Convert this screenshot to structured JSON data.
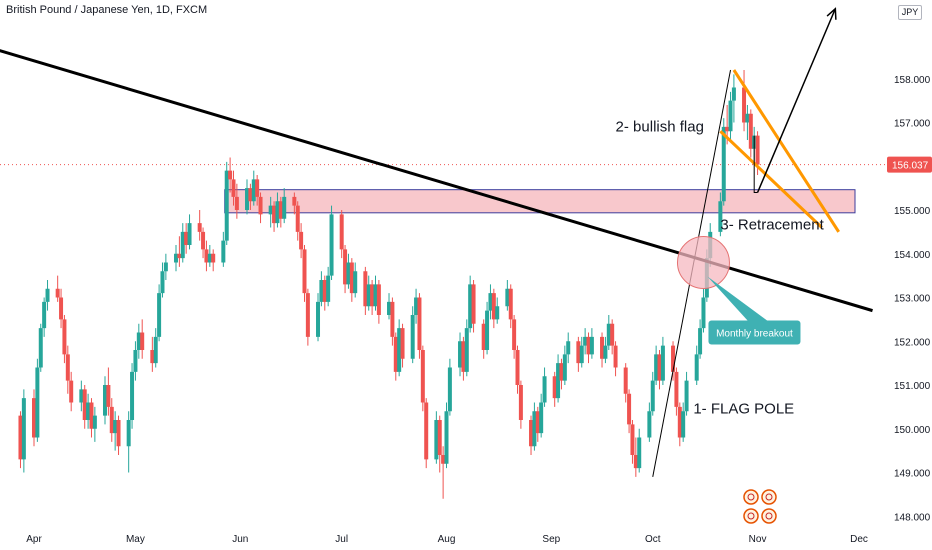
{
  "header": {
    "title": "British Pound / Japanese Yen, 1D, FXCM",
    "currency_button": "JPY"
  },
  "colors": {
    "up": "#26a69a",
    "down": "#ef5350",
    "trendline": "#000000",
    "flag_channel": "#ff9800",
    "zone_fill": "#f8c8cc",
    "zone_border": "#3c3c9c",
    "breakout_circle": "#f6b8c0",
    "callout": "#3fb1b3",
    "last_price_line": "#ef5350"
  },
  "annotations": {
    "flag_pole": "1- FLAG POLE",
    "bullish_flag": "2- bullish flag",
    "retracement": "3- Retracement",
    "monthly_breakout": "Monthly breakout"
  },
  "last_price": "156.037",
  "chart_data": {
    "type": "candlestick",
    "title": "British Pound / Japanese Yen, 1D, FXCM",
    "ylim": [
      147.8,
      159.8
    ],
    "y_ticks": [
      "148.000",
      "149.000",
      "150.000",
      "151.000",
      "152.000",
      "153.000",
      "154.000",
      "155.000",
      "156.000",
      "157.000",
      "158.000"
    ],
    "x_ticks": [
      "Apr",
      "May",
      "Jun",
      "Jul",
      "Aug",
      "Sep",
      "Oct",
      "Nov",
      "Dec"
    ],
    "grid": false,
    "candles": [
      [
        "2024-03-28",
        150.3,
        150.4,
        149.1,
        149.3
      ],
      [
        "2024-03-29",
        149.3,
        150.9,
        149.0,
        150.7
      ],
      [
        "2024-04-01",
        150.7,
        150.9,
        149.6,
        149.8
      ],
      [
        "2024-04-02",
        149.8,
        151.6,
        149.7,
        151.4
      ],
      [
        "2024-04-03",
        151.4,
        152.4,
        151.3,
        152.3
      ],
      [
        "2024-04-04",
        152.3,
        153.0,
        152.1,
        152.9
      ],
      [
        "2024-04-05",
        152.9,
        153.4,
        152.7,
        153.2
      ],
      [
        "2024-04-08",
        153.2,
        153.5,
        152.9,
        153.0
      ],
      [
        "2024-04-09",
        153.0,
        153.2,
        152.3,
        152.5
      ],
      [
        "2024-04-10",
        152.5,
        152.6,
        151.5,
        151.7
      ],
      [
        "2024-04-11",
        151.7,
        151.9,
        150.8,
        151.1
      ],
      [
        "2024-04-12",
        151.1,
        151.3,
        150.4,
        150.6
      ],
      [
        "2024-04-15",
        150.6,
        151.1,
        150.4,
        150.9
      ],
      [
        "2024-04-16",
        150.9,
        151.0,
        150.0,
        150.2
      ],
      [
        "2024-04-17",
        150.2,
        150.8,
        150.0,
        150.6
      ],
      [
        "2024-04-18",
        150.6,
        150.7,
        149.8,
        150.0
      ],
      [
        "2024-04-19",
        150.0,
        150.5,
        149.7,
        150.3
      ],
      [
        "2024-04-22",
        150.3,
        151.2,
        150.1,
        151.0
      ],
      [
        "2024-04-23",
        151.0,
        151.4,
        150.3,
        150.5
      ],
      [
        "2024-04-24",
        150.5,
        150.7,
        149.7,
        149.9
      ],
      [
        "2024-04-25",
        149.9,
        150.4,
        149.5,
        150.2
      ],
      [
        "2024-04-26",
        150.2,
        150.3,
        149.4,
        149.6
      ],
      [
        "2024-04-29",
        149.6,
        150.4,
        149.0,
        150.2
      ],
      [
        "2024-04-30",
        150.2,
        151.5,
        150.0,
        151.3
      ],
      [
        "2024-05-01",
        151.3,
        152.0,
        151.1,
        151.8
      ],
      [
        "2024-05-02",
        151.8,
        152.4,
        151.6,
        152.2
      ],
      [
        "2024-05-03",
        152.2,
        152.5,
        151.6,
        151.8
      ],
      [
        "2024-05-06",
        151.8,
        152.1,
        151.3,
        151.5
      ],
      [
        "2024-05-07",
        151.5,
        152.3,
        151.4,
        152.1
      ],
      [
        "2024-05-08",
        152.1,
        153.3,
        152.0,
        153.1
      ],
      [
        "2024-05-09",
        153.1,
        153.8,
        153.0,
        153.6
      ],
      [
        "2024-05-10",
        153.6,
        154.0,
        153.4,
        153.8
      ],
      [
        "2024-05-13",
        153.8,
        154.2,
        153.6,
        154.0
      ],
      [
        "2024-05-14",
        154.0,
        154.4,
        153.7,
        153.9
      ],
      [
        "2024-05-15",
        153.9,
        154.7,
        153.8,
        154.5
      ],
      [
        "2024-05-16",
        154.5,
        154.7,
        154.0,
        154.2
      ],
      [
        "2024-05-17",
        154.2,
        154.9,
        154.1,
        154.7
      ],
      [
        "2024-05-20",
        154.7,
        155.0,
        154.3,
        154.5
      ],
      [
        "2024-05-21",
        154.5,
        154.6,
        153.9,
        154.1
      ],
      [
        "2024-05-22",
        154.1,
        154.3,
        153.6,
        153.8
      ],
      [
        "2024-05-23",
        153.8,
        154.2,
        153.7,
        154.0
      ],
      [
        "2024-05-24",
        154.0,
        154.1,
        153.6,
        153.8
      ],
      [
        "2024-05-27",
        153.8,
        154.5,
        153.7,
        154.3
      ],
      [
        "2024-05-28",
        154.3,
        156.1,
        154.2,
        155.9
      ],
      [
        "2024-05-29",
        155.9,
        156.2,
        155.4,
        155.7
      ],
      [
        "2024-05-30",
        155.7,
        155.9,
        155.1,
        155.3
      ],
      [
        "2024-05-31",
        155.3,
        155.6,
        154.8,
        155.0
      ],
      [
        "2024-06-03",
        155.0,
        155.7,
        154.9,
        155.5
      ],
      [
        "2024-06-04",
        155.5,
        155.6,
        155.0,
        155.2
      ],
      [
        "2024-06-05",
        155.2,
        155.9,
        155.1,
        155.7
      ],
      [
        "2024-06-06",
        155.7,
        155.8,
        155.1,
        155.3
      ],
      [
        "2024-06-07",
        155.3,
        155.4,
        154.7,
        154.9
      ],
      [
        "2024-06-10",
        154.9,
        155.3,
        154.6,
        155.1
      ],
      [
        "2024-06-11",
        155.1,
        155.2,
        154.5,
        154.7
      ],
      [
        "2024-06-12",
        154.7,
        155.4,
        154.6,
        155.2
      ],
      [
        "2024-06-13",
        155.2,
        155.3,
        154.6,
        154.8
      ],
      [
        "2024-06-14",
        154.8,
        155.5,
        154.7,
        155.3
      ],
      [
        "2024-06-17",
        155.3,
        155.4,
        154.9,
        155.1
      ],
      [
        "2024-06-18",
        155.1,
        155.2,
        154.3,
        154.5
      ],
      [
        "2024-06-19",
        154.5,
        154.7,
        153.9,
        154.1
      ],
      [
        "2024-06-20",
        154.1,
        154.2,
        152.9,
        153.1
      ],
      [
        "2024-06-21",
        153.1,
        153.2,
        151.9,
        152.1
      ],
      [
        "2024-06-24",
        152.1,
        153.1,
        152.0,
        152.9
      ],
      [
        "2024-06-25",
        152.9,
        153.6,
        152.8,
        153.4
      ],
      [
        "2024-06-26",
        153.4,
        153.5,
        152.7,
        152.9
      ],
      [
        "2024-06-27",
        152.9,
        153.7,
        152.8,
        153.5
      ],
      [
        "2024-06-28",
        153.5,
        155.1,
        153.4,
        154.9
      ],
      [
        "2024-07-01",
        154.9,
        155.0,
        153.9,
        154.1
      ],
      [
        "2024-07-02",
        154.1,
        154.2,
        153.1,
        153.3
      ],
      [
        "2024-07-03",
        153.3,
        154.0,
        153.2,
        153.8
      ],
      [
        "2024-07-04",
        153.8,
        153.9,
        152.9,
        153.1
      ],
      [
        "2024-07-05",
        153.1,
        153.8,
        153.0,
        153.6
      ],
      [
        "2024-07-08",
        153.6,
        153.7,
        152.6,
        152.8
      ],
      [
        "2024-07-09",
        152.8,
        153.5,
        152.7,
        153.3
      ],
      [
        "2024-07-10",
        153.3,
        153.4,
        152.6,
        152.8
      ],
      [
        "2024-07-11",
        152.8,
        153.5,
        152.7,
        153.3
      ],
      [
        "2024-07-12",
        153.3,
        153.4,
        152.4,
        152.6
      ],
      [
        "2024-07-15",
        152.6,
        153.1,
        152.5,
        152.9
      ],
      [
        "2024-07-16",
        152.9,
        153.0,
        151.9,
        152.1
      ],
      [
        "2024-07-17",
        152.1,
        152.2,
        151.1,
        151.3
      ],
      [
        "2024-07-18",
        151.3,
        152.5,
        151.2,
        152.3
      ],
      [
        "2024-07-19",
        152.3,
        152.4,
        151.4,
        151.6
      ],
      [
        "2024-07-22",
        151.6,
        152.8,
        151.5,
        152.6
      ],
      [
        "2024-07-23",
        152.6,
        153.2,
        152.4,
        153.0
      ],
      [
        "2024-07-24",
        153.0,
        153.1,
        151.6,
        151.8
      ],
      [
        "2024-07-25",
        151.8,
        151.9,
        150.4,
        150.6
      ],
      [
        "2024-07-26",
        150.6,
        150.7,
        149.1,
        149.3
      ],
      [
        "2024-07-29",
        149.3,
        150.4,
        149.2,
        150.2
      ],
      [
        "2024-07-30",
        150.2,
        150.3,
        149.0,
        149.4
      ],
      [
        "2024-07-31",
        149.4,
        149.6,
        148.4,
        149.2
      ],
      [
        "2024-08-01",
        149.2,
        150.6,
        149.1,
        150.4
      ],
      [
        "2024-08-02",
        150.4,
        151.6,
        150.3,
        151.4
      ],
      [
        "2024-08-05",
        151.4,
        152.2,
        151.2,
        152.0
      ],
      [
        "2024-08-06",
        152.0,
        152.1,
        151.1,
        151.3
      ],
      [
        "2024-08-07",
        151.3,
        152.5,
        151.2,
        152.3
      ],
      [
        "2024-08-08",
        152.3,
        153.5,
        152.2,
        153.3
      ],
      [
        "2024-08-09",
        153.3,
        153.4,
        152.2,
        152.4
      ],
      [
        "2024-08-12",
        152.4,
        152.5,
        151.6,
        151.8
      ],
      [
        "2024-08-13",
        151.8,
        152.9,
        151.7,
        152.7
      ],
      [
        "2024-08-14",
        152.7,
        153.3,
        152.5,
        153.1
      ],
      [
        "2024-08-15",
        153.1,
        153.2,
        152.3,
        152.5
      ],
      [
        "2024-08-16",
        152.5,
        153.0,
        152.4,
        152.8
      ],
      [
        "2024-08-19",
        152.8,
        153.4,
        152.7,
        153.2
      ],
      [
        "2024-08-20",
        153.2,
        153.3,
        152.3,
        152.5
      ],
      [
        "2024-08-21",
        152.5,
        152.6,
        151.6,
        151.8
      ],
      [
        "2024-08-22",
        151.8,
        151.9,
        150.8,
        151.0
      ],
      [
        "2024-08-23",
        151.0,
        151.1,
        150.0,
        150.2
      ],
      [
        "2024-08-26",
        150.2,
        150.3,
        149.4,
        149.6
      ],
      [
        "2024-08-27",
        149.6,
        150.6,
        149.5,
        150.4
      ],
      [
        "2024-08-28",
        150.4,
        150.5,
        149.7,
        149.9
      ],
      [
        "2024-08-29",
        149.9,
        150.8,
        149.8,
        150.6
      ],
      [
        "2024-08-30",
        150.6,
        151.4,
        150.5,
        151.2
      ],
      [
        "2024-09-02",
        151.2,
        151.3,
        150.5,
        150.7
      ],
      [
        "2024-09-03",
        150.7,
        151.7,
        150.6,
        151.5
      ],
      [
        "2024-09-04",
        151.5,
        151.6,
        150.9,
        151.1
      ],
      [
        "2024-09-05",
        151.1,
        151.9,
        151.0,
        151.7
      ],
      [
        "2024-09-06",
        151.7,
        152.2,
        151.5,
        152.0
      ],
      [
        "2024-09-09",
        152.0,
        152.1,
        151.3,
        151.5
      ],
      [
        "2024-09-10",
        151.5,
        152.1,
        151.4,
        151.9
      ],
      [
        "2024-09-11",
        151.9,
        152.3,
        151.7,
        152.1
      ],
      [
        "2024-09-12",
        152.1,
        152.2,
        151.5,
        151.7
      ],
      [
        "2024-09-13",
        151.7,
        152.3,
        151.6,
        152.1
      ],
      [
        "2024-09-16",
        152.1,
        152.2,
        151.4,
        151.6
      ],
      [
        "2024-09-17",
        151.6,
        152.1,
        151.5,
        151.9
      ],
      [
        "2024-09-18",
        151.9,
        152.6,
        151.8,
        152.4
      ],
      [
        "2024-09-19",
        152.4,
        152.5,
        151.7,
        151.9
      ],
      [
        "2024-09-20",
        151.9,
        152.0,
        151.2,
        151.4
      ],
      [
        "2024-09-23",
        151.4,
        151.5,
        150.6,
        150.8
      ],
      [
        "2024-09-24",
        150.8,
        150.9,
        149.9,
        150.1
      ],
      [
        "2024-09-25",
        150.1,
        150.2,
        149.2,
        149.4
      ],
      [
        "2024-09-26",
        149.4,
        149.8,
        148.9,
        149.1
      ],
      [
        "2024-09-27",
        149.1,
        150.0,
        149.0,
        149.8
      ],
      [
        "2024-09-30",
        149.8,
        150.6,
        149.7,
        150.4
      ],
      [
        "2024-10-01",
        150.4,
        151.3,
        150.3,
        151.1
      ],
      [
        "2024-10-02",
        151.1,
        151.9,
        151.0,
        151.7
      ],
      [
        "2024-10-03",
        151.7,
        151.8,
        150.9,
        151.1
      ],
      [
        "2024-10-04",
        151.1,
        152.1,
        151.0,
        151.9
      ],
      [
        "2024-10-07",
        151.9,
        152.0,
        151.1,
        151.3
      ],
      [
        "2024-10-08",
        151.3,
        151.4,
        150.3,
        150.5
      ],
      [
        "2024-10-09",
        150.5,
        150.6,
        149.6,
        149.8
      ],
      [
        "2024-10-10",
        149.8,
        150.6,
        149.7,
        150.4
      ],
      [
        "2024-10-11",
        150.4,
        151.3,
        150.3,
        151.1
      ],
      [
        "2024-10-14",
        151.1,
        151.9,
        151.0,
        151.7
      ],
      [
        "2024-10-15",
        151.7,
        152.5,
        151.6,
        152.3
      ],
      [
        "2024-10-16",
        152.3,
        153.2,
        152.2,
        153.0
      ],
      [
        "2024-10-17",
        153.0,
        154.1,
        152.9,
        153.9
      ],
      [
        "2024-10-18",
        153.9,
        154.7,
        153.7,
        154.5
      ],
      [
        "2024-10-21",
        154.5,
        155.4,
        154.4,
        155.2
      ],
      [
        "2024-10-22",
        155.2,
        157.1,
        155.1,
        156.9
      ],
      [
        "2024-10-23",
        156.9,
        157.4,
        156.5,
        156.8
      ],
      [
        "2024-10-24",
        156.8,
        157.7,
        156.6,
        157.5
      ],
      [
        "2024-10-25",
        157.5,
        158.1,
        157.0,
        157.8
      ],
      [
        "2024-10-28",
        157.8,
        158.2,
        156.8,
        157.0
      ],
      [
        "2024-10-29",
        157.0,
        157.4,
        156.6,
        157.2
      ],
      [
        "2024-10-30",
        157.2,
        157.3,
        156.2,
        156.4
      ],
      [
        "2024-10-31",
        156.4,
        156.9,
        156.1,
        156.7
      ],
      [
        "2024-11-01",
        156.7,
        156.8,
        155.8,
        156.037
      ]
    ],
    "trendline": [
      [
        "2024-03-15",
        158.8
      ],
      [
        "2024-12-05",
        152.7
      ]
    ],
    "support_zone": {
      "from": "2024-05-28",
      "to": "2024-12-01",
      "low": 155.05,
      "high": 155.35
    },
    "flag_channel": {
      "upper": [
        [
          "2024-10-25",
          158.2
        ],
        [
          "2024-11-25",
          154.5
        ]
      ],
      "lower": [
        [
          "2024-10-21",
          156.8
        ],
        [
          "2024-11-20",
          154.6
        ]
      ]
    },
    "flag_pole_line": [
      [
        "2024-10-01",
        148.9
      ],
      [
        "2024-10-24",
        158.2
      ]
    ],
    "projection": [
      [
        "2024-11-01",
        155.4
      ],
      [
        "2024-11-24",
        159.6
      ]
    ],
    "breakout_circle": {
      "date": "2024-10-16",
      "price": 153.8
    }
  }
}
